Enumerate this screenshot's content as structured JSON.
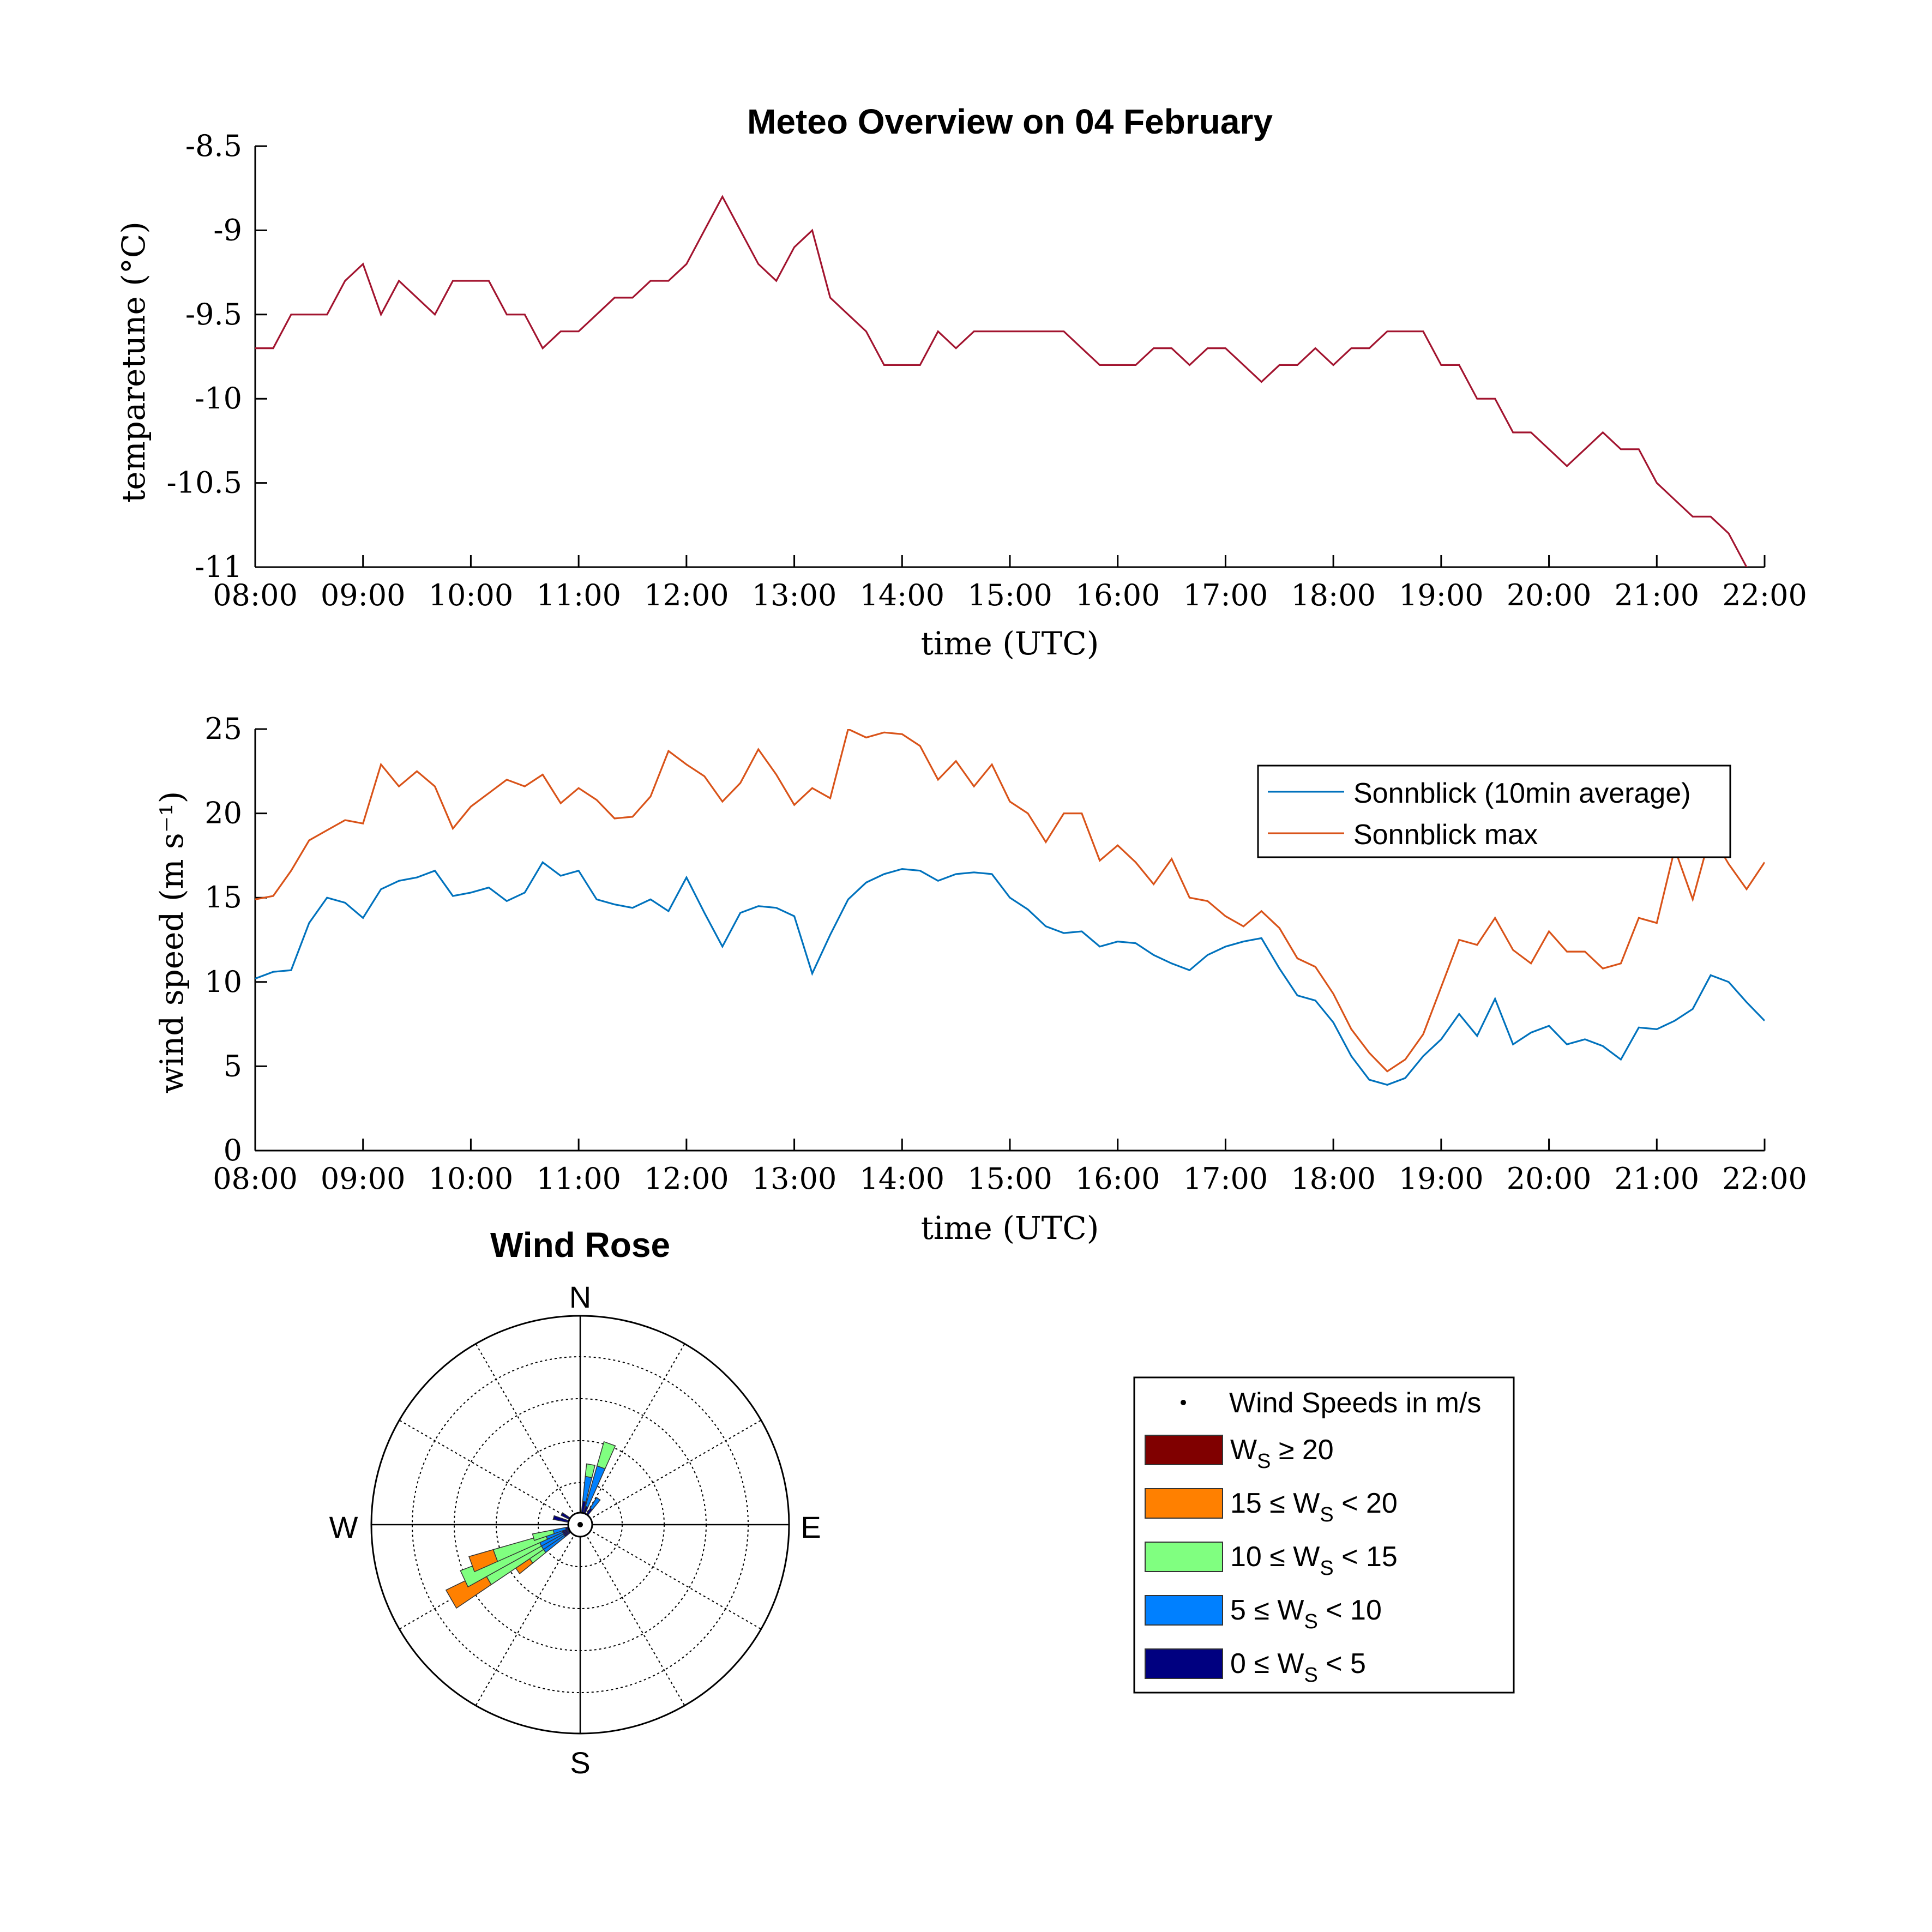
{
  "chart_data": [
    {
      "type": "line",
      "title": "Meteo Overview on 04 February",
      "xlabel": "time (UTC)",
      "ylabel": "temparetune (°C)",
      "ylim": [
        -11,
        -8.5
      ],
      "xlim": [
        "08:00",
        "22:00"
      ],
      "x_step_minutes": 10,
      "x_ticks": [
        "08:00",
        "09:00",
        "10:00",
        "11:00",
        "12:00",
        "13:00",
        "14:00",
        "15:00",
        "16:00",
        "17:00",
        "18:00",
        "19:00",
        "20:00",
        "21:00",
        "22:00"
      ],
      "y_ticks": [
        "-8.5",
        "-9",
        "-9.5",
        "-10",
        "-10.5",
        "-11"
      ],
      "colors": {
        "temperature": "#A2142F"
      },
      "series": [
        {
          "values": [
            -9.7,
            -9.7,
            -9.5,
            -9.5,
            -9.5,
            -9.3,
            -9.2,
            -9.5,
            -9.3,
            -9.4,
            -9.5,
            -9.3,
            -9.3,
            -9.3,
            -9.5,
            -9.5,
            -9.7,
            -9.6,
            -9.6,
            -9.5,
            -9.4,
            -9.4,
            -9.3,
            -9.3,
            -9.2,
            -9.0,
            -8.8,
            -9.0,
            -9.2,
            -9.3,
            -9.1,
            -9.0,
            -9.4,
            -9.5,
            -9.6,
            -9.8,
            -9.8,
            -9.8,
            -9.6,
            -9.7,
            -9.6,
            -9.6,
            -9.6,
            -9.6,
            -9.6,
            -9.6,
            -9.7,
            -9.8,
            -9.8,
            -9.8,
            -9.7,
            -9.7,
            -9.8,
            -9.7,
            -9.7,
            -9.8,
            -9.9,
            -9.8,
            -9.8,
            -9.7,
            -9.8,
            -9.7,
            -9.7,
            -9.6,
            -9.6,
            -9.6,
            -9.8,
            -9.8,
            -10.0,
            -10.0,
            -10.2,
            -10.2,
            -10.3,
            -10.4,
            -10.3,
            -10.2,
            -10.3,
            -10.3,
            -10.5,
            -10.6,
            -10.7,
            -10.7,
            -10.8,
            -11.0,
            -11.1,
            -11.0,
            -10.9
          ]
        }
      ]
    },
    {
      "type": "line",
      "xlabel": "time (UTC)",
      "ylabel": "wind speed (m s⁻¹)",
      "ylim": [
        0,
        25
      ],
      "xlim": [
        "08:00",
        "22:00"
      ],
      "x_step_minutes": 10,
      "x_ticks": [
        "08:00",
        "09:00",
        "10:00",
        "11:00",
        "12:00",
        "13:00",
        "14:00",
        "15:00",
        "16:00",
        "17:00",
        "18:00",
        "19:00",
        "20:00",
        "21:00",
        "22:00"
      ],
      "y_ticks": [
        "25",
        "20",
        "15",
        "10",
        "5",
        "0"
      ],
      "legend_placement": "top-right",
      "series": [
        {
          "name": "Sonnblick (10min average)",
          "color": "#0072BD",
          "values": [
            10.2,
            10.6,
            10.7,
            13.5,
            15.0,
            14.7,
            13.8,
            15.5,
            16.0,
            16.2,
            16.6,
            15.1,
            15.3,
            15.6,
            14.8,
            15.3,
            17.1,
            16.3,
            16.6,
            14.9,
            14.6,
            14.4,
            14.9,
            14.2,
            16.2,
            14.1,
            12.1,
            14.1,
            14.5,
            14.4,
            13.9,
            10.5,
            12.8,
            14.9,
            15.9,
            16.4,
            16.7,
            16.6,
            16.0,
            16.4,
            16.5,
            16.4,
            15.0,
            14.3,
            13.3,
            12.9,
            13.0,
            12.1,
            12.4,
            12.3,
            11.6,
            11.1,
            10.7,
            11.6,
            12.1,
            12.4,
            12.6,
            10.8,
            9.2,
            8.9,
            7.6,
            5.6,
            4.2,
            3.9,
            4.3,
            5.6,
            6.6,
            8.1,
            6.8,
            9.0,
            6.3,
            7.0,
            7.4,
            6.3,
            6.6,
            6.2,
            5.4,
            7.3,
            7.2,
            7.7,
            8.4,
            10.4,
            10.0,
            8.8,
            7.7
          ]
        },
        {
          "name": "Sonnblick max",
          "color": "#D95319",
          "values": [
            14.9,
            15.1,
            16.6,
            18.4,
            19.0,
            19.6,
            19.4,
            22.9,
            21.6,
            22.5,
            21.6,
            19.1,
            20.4,
            21.2,
            22.0,
            21.6,
            22.3,
            20.6,
            21.5,
            20.8,
            19.7,
            19.8,
            21.0,
            23.7,
            22.9,
            22.2,
            20.7,
            21.8,
            23.8,
            22.3,
            20.5,
            21.5,
            20.9,
            25.0,
            24.5,
            24.8,
            24.7,
            24.0,
            22.0,
            23.1,
            21.6,
            22.9,
            20.7,
            20.0,
            18.3,
            20.0,
            20.0,
            17.2,
            18.1,
            17.1,
            15.8,
            17.3,
            15.0,
            14.8,
            13.9,
            13.3,
            14.2,
            13.2,
            11.4,
            10.9,
            9.3,
            7.2,
            5.8,
            4.7,
            5.4,
            6.9,
            9.7,
            12.5,
            12.2,
            13.8,
            11.9,
            11.1,
            13.0,
            11.8,
            11.8,
            10.8,
            11.1,
            13.8,
            13.5,
            17.9,
            14.9,
            18.8,
            17.0,
            15.5,
            17.1
          ]
        }
      ]
    },
    {
      "type": "wind_rose",
      "title": "Wind Rose",
      "directions": [
        "N",
        "E",
        "S",
        "W"
      ],
      "legend_title": "Wind Speeds in m/s",
      "legend_placement": "right",
      "bins": [
        {
          "label": "W_S ≥ 20",
          "color": "#800000"
        },
        {
          "label": "15 ≤ W_S < 20",
          "color": "#FF8000"
        },
        {
          "label": "10 ≤ W_S < 15",
          "color": "#80FF80"
        },
        {
          "label": "5 ≤ W_S < 10",
          "color": "#0080FF"
        },
        {
          "label": "0 ≤ W_S < 5",
          "color": "#000080"
        }
      ],
      "sectors": [
        {
          "dir": 10,
          "stack": [
            0.4,
            0.6,
            0.3,
            0,
            0
          ]
        },
        {
          "dir": 20,
          "stack": [
            0.3,
            1.0,
            0.6,
            0,
            0
          ]
        },
        {
          "dir": 35,
          "stack": [
            0.3,
            0.3,
            0.0,
            0,
            0
          ]
        },
        {
          "dir": 300,
          "stack": [
            0.35,
            0.0,
            0.0,
            0,
            0
          ]
        },
        {
          "dir": 285,
          "stack": [
            0.5,
            0.0,
            0.0,
            0,
            0
          ]
        },
        {
          "dir": 235,
          "stack": [
            0.3,
            0.6,
            0.4,
            0.4,
            0
          ]
        },
        {
          "dir": 240,
          "stack": [
            0.3,
            0.6,
            1.5,
            1.0,
            0
          ]
        },
        {
          "dir": 245,
          "stack": [
            0.3,
            0.6,
            2.0,
            0.0,
            0
          ]
        },
        {
          "dir": 250,
          "stack": [
            0.3,
            0.4,
            1.3,
            0.6,
            0
          ]
        },
        {
          "dir": 255,
          "stack": [
            0.2,
            0.3,
            0.5,
            0.0,
            0
          ]
        }
      ]
    }
  ],
  "legend_symbols": {
    "ws_sub": "S"
  }
}
